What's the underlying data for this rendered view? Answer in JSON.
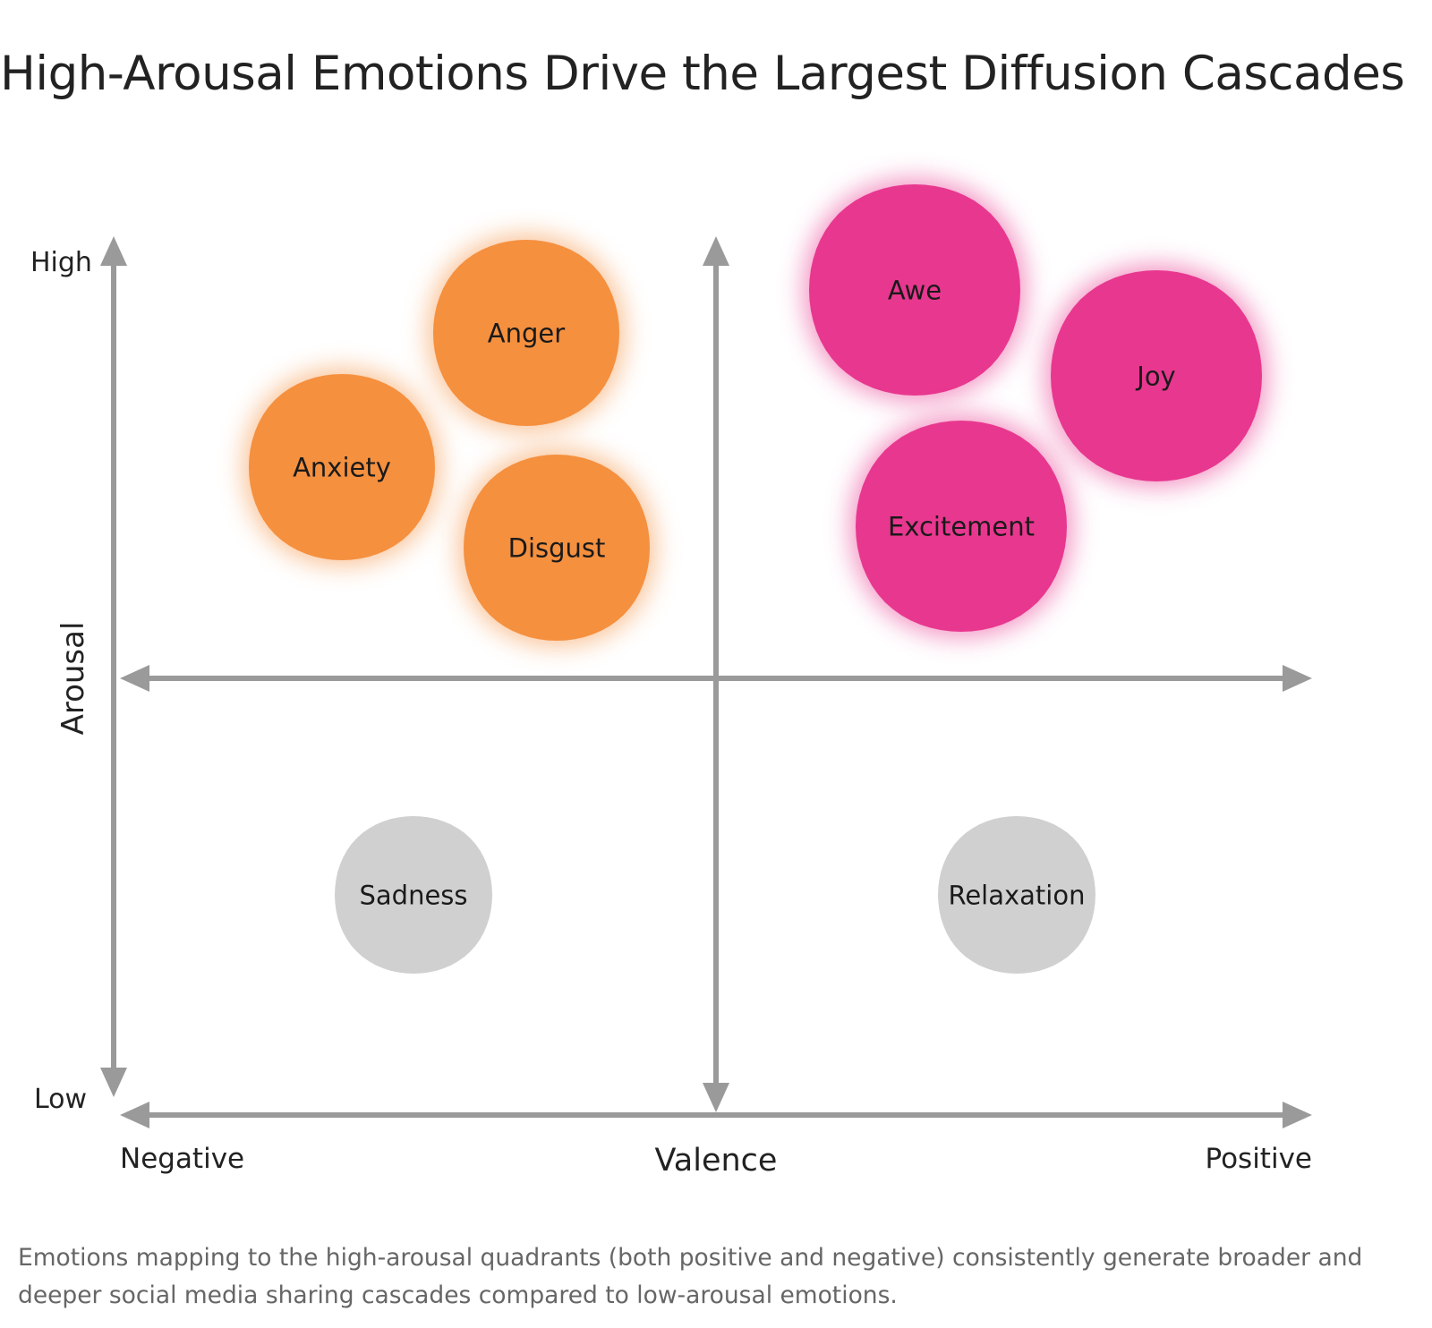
{
  "title": "High-Arousal Emotions Drive the Largest Diffusion Cascades",
  "axes": {
    "y_label": "Arousal",
    "y_high": "High",
    "y_low": "Low",
    "x_label": "Valence",
    "x_negative": "Negative",
    "x_positive": "Positive"
  },
  "colors": {
    "negative_high": "#f5903f",
    "positive_high": "#e8378f",
    "low_arousal": "#d0d0d0",
    "axis": "#9a9a9a"
  },
  "emotions": [
    {
      "label": "Anger",
      "group": "negative_high"
    },
    {
      "label": "Anxiety",
      "group": "negative_high"
    },
    {
      "label": "Disgust",
      "group": "negative_high"
    },
    {
      "label": "Awe",
      "group": "positive_high"
    },
    {
      "label": "Joy",
      "group": "positive_high"
    },
    {
      "label": "Excitement",
      "group": "positive_high"
    },
    {
      "label": "Sadness",
      "group": "low_arousal"
    },
    {
      "label": "Relaxation",
      "group": "low_arousal"
    }
  ],
  "caption": "Emotions mapping to the high-arousal quadrants (both positive and negative) consistently generate broader and deeper social media sharing cascades compared to low-arousal emotions."
}
